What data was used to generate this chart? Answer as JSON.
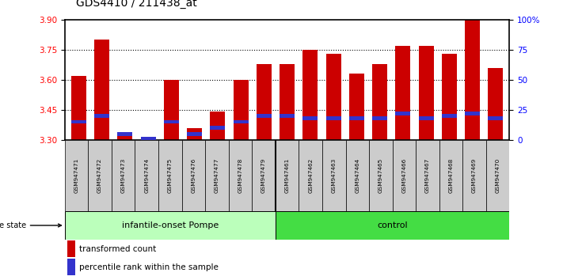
{
  "title": "GDS4410 / 211438_at",
  "samples": [
    "GSM947471",
    "GSM947472",
    "GSM947473",
    "GSM947474",
    "GSM947475",
    "GSM947476",
    "GSM947477",
    "GSM947478",
    "GSM947479",
    "GSM947461",
    "GSM947462",
    "GSM947463",
    "GSM947464",
    "GSM947465",
    "GSM947466",
    "GSM947467",
    "GSM947468",
    "GSM947469",
    "GSM947470"
  ],
  "transformed_count": [
    3.62,
    3.8,
    3.33,
    3.31,
    3.6,
    3.36,
    3.44,
    3.6,
    3.68,
    3.68,
    3.75,
    3.73,
    3.63,
    3.68,
    3.77,
    3.77,
    3.73,
    3.9,
    3.66
  ],
  "percentile_rank": [
    15,
    20,
    5,
    1,
    15,
    5,
    10,
    15,
    20,
    20,
    18,
    18,
    18,
    18,
    22,
    18,
    20,
    22,
    18
  ],
  "group1_label": "infantile-onset Pompe",
  "group2_label": "control",
  "group1_count": 9,
  "group2_count": 10,
  "ylim_left": [
    3.3,
    3.9
  ],
  "ylim_right": [
    0,
    100
  ],
  "yticks_left": [
    3.3,
    3.45,
    3.6,
    3.75,
    3.9
  ],
  "yticks_right": [
    0,
    25,
    50,
    75,
    100
  ],
  "ytick_labels_right": [
    "0",
    "25",
    "50",
    "75",
    "100%"
  ],
  "bar_color_red": "#cc0000",
  "bar_color_blue": "#3333cc",
  "group1_bg": "#bbffbb",
  "group2_bg": "#44dd44",
  "sample_bg": "#cccccc",
  "baseline": 3.3,
  "bar_width": 0.65,
  "disease_state_label": "disease state",
  "legend1": "transformed count",
  "legend2": "percentile rank within the sample",
  "grid_yticks": [
    3.45,
    3.6,
    3.75
  ]
}
